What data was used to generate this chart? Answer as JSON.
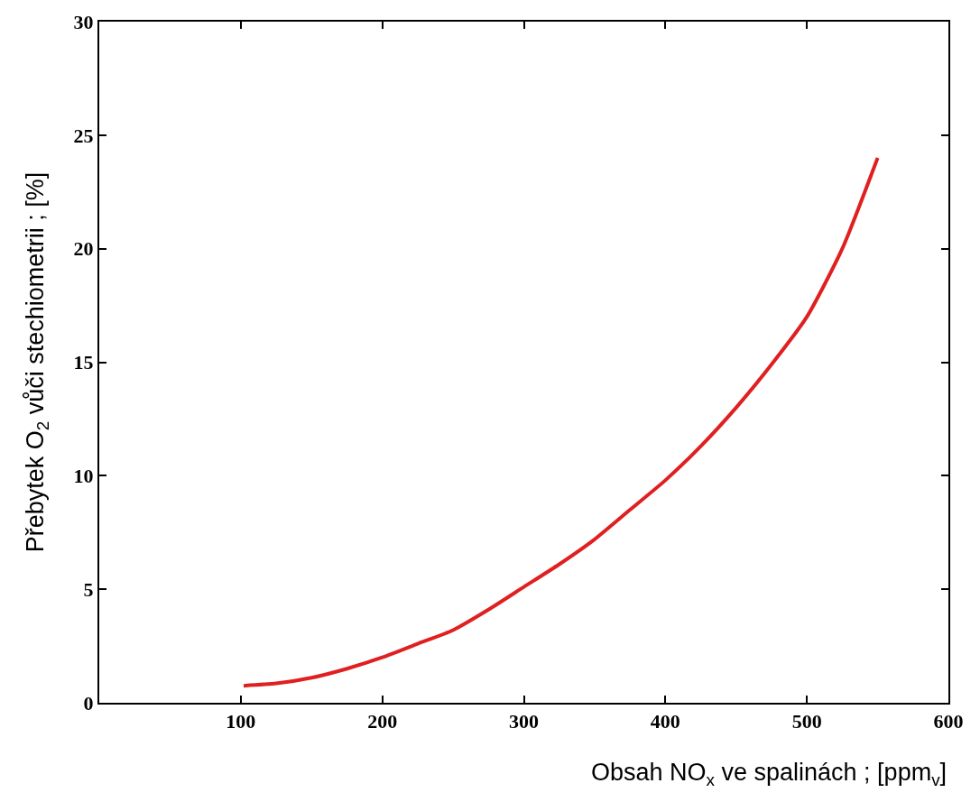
{
  "chart_data": {
    "type": "line",
    "xlabel": "Obsah NO$_{x}$ ve spalinách ; [ppm$_{v}$]",
    "ylabel": "Přebytek O$_{2}$ vůči stechiometrii ; [%]",
    "x": [
      102,
      125,
      150,
      175,
      200,
      225,
      250,
      275,
      300,
      325,
      350,
      375,
      400,
      425,
      450,
      475,
      500,
      525,
      550
    ],
    "series": [
      {
        "color": "#e02020",
        "values": [
          0.75,
          0.85,
          1.1,
          1.5,
          2.0,
          2.6,
          3.2,
          4.1,
          5.1,
          6.1,
          7.2,
          8.5,
          9.8,
          11.3,
          13.0,
          14.9,
          17.0,
          20.0,
          24.0
        ]
      }
    ],
    "xlim": [
      0,
      600
    ],
    "xticks": [
      100,
      200,
      300,
      400,
      500,
      600
    ],
    "ylim": [
      0,
      30
    ],
    "yticks": [
      0,
      5,
      10,
      15,
      20,
      25,
      30
    ],
    "marker": "none",
    "line_style": "solid"
  }
}
